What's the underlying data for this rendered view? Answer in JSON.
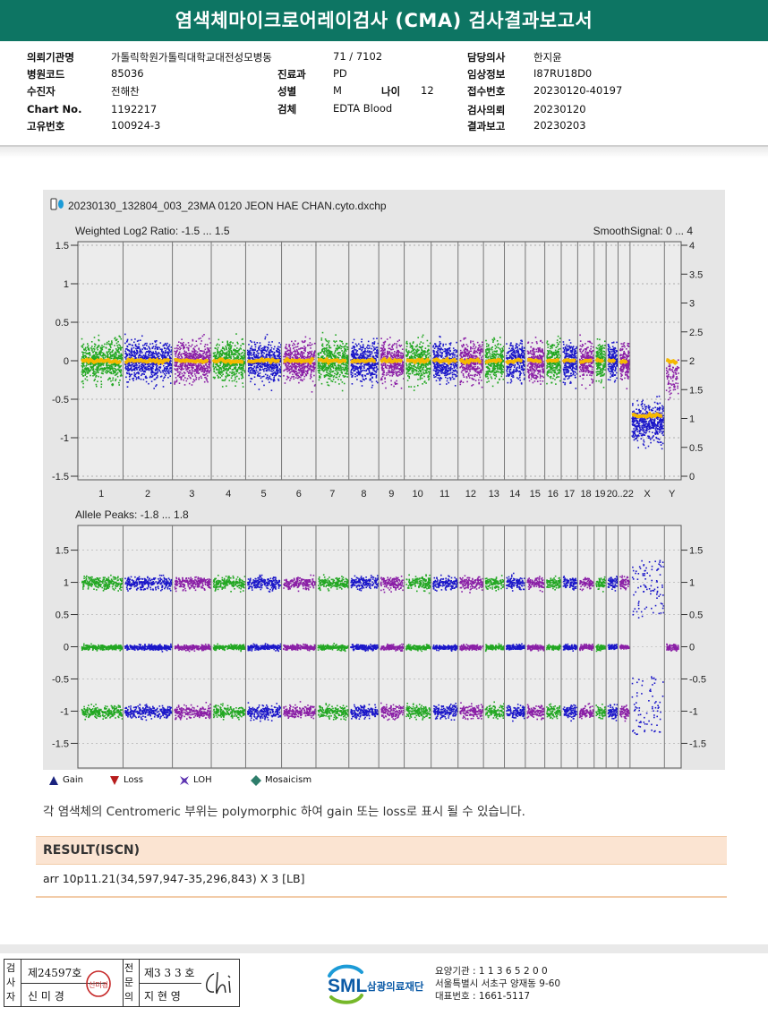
{
  "report": {
    "title": "염색체마이크로어레이검사 (CMA) 검사결과보고서"
  },
  "info": {
    "institution_label": "의뢰기관명",
    "institution_value": "가톨릭학원가톨릭대학교대전성모병동",
    "ward_value": "71 / 7102",
    "doctor_label": "담당의사",
    "doctor_value": "한지윤",
    "hospital_code_label": "병원코드",
    "hospital_code_value": "85036",
    "department_label": "진료과",
    "department_value": "PD",
    "clinical_label": "임상정보",
    "clinical_value": "I87RU18D0",
    "patient_label": "수진자",
    "patient_value": "전해찬",
    "sex_label": "성별",
    "sex_value": "M",
    "age_label": "나이",
    "age_value": "12",
    "receipt_label": "접수번호",
    "receipt_value": "20230120-40197",
    "chart_no_label": "Chart No.",
    "chart_no_value": "1192217",
    "specimen_label": "검체",
    "specimen_value": "EDTA Blood",
    "request_label": "검사의뢰",
    "request_value": "20230120",
    "unique_label": "고유번호",
    "unique_value": "100924-3",
    "report_label": "결과보고",
    "report_value": "20230203"
  },
  "chart_data": {
    "type": "scatter",
    "file_name": "20230130_132804_003_23MA 0120 JEON HAE CHAN.cyto.dxchp",
    "chromosomes": [
      "1",
      "2",
      "3",
      "4",
      "5",
      "6",
      "7",
      "8",
      "9",
      "10",
      "11",
      "12",
      "13",
      "14",
      "15",
      "16",
      "17",
      "18",
      "19",
      "20",
      "...22",
      "X",
      "Y"
    ],
    "top_panel": {
      "left_label": "Weighted Log2 Ratio: -1.5 ... 1.5",
      "right_label": "SmoothSignal: 0 ... 4",
      "left_ticks": [
        "1.5",
        "1",
        "0.5",
        "0",
        "-0.5",
        "-1",
        "-1.5"
      ],
      "right_ticks": [
        "4",
        "3.5",
        "3",
        "2.5",
        "2",
        "1.5",
        "1",
        "0.5",
        "0"
      ],
      "ylim": [
        -1.5,
        1.5
      ],
      "y2lim": [
        0,
        4
      ]
    },
    "bottom_panel": {
      "left_label": "Allele Peaks: -1.8 ... 1.8",
      "left_ticks": [
        "1.5",
        "1",
        "0.5",
        "0",
        "-0.5",
        "-1",
        "-1.5"
      ],
      "right_ticks": [
        "1.5",
        "1",
        "0.5",
        "0",
        "-0.5",
        "-1",
        "-1.5"
      ],
      "ylim": [
        -1.8,
        1.8
      ]
    },
    "colors": {
      "green": "#22a722",
      "blue": "#1b17c9",
      "purple": "#8a1fa6",
      "smooth": "#f5b800"
    }
  },
  "legend": {
    "gain": "Gain",
    "loss": "Loss",
    "loh": "LOH",
    "mosaicism": "Mosaicism",
    "gain_color": "#1a237e",
    "loss_color": "#b71c1c",
    "loh_color": "#5e35b1",
    "mosaic_color": "#2e7d6b"
  },
  "note": "각 염색체의 Centromeric 부위는 polymorphic 하여 gain 또는 loss로 표시 될 수 있습니다.",
  "result": {
    "heading": "RESULT(ISCN)",
    "text": "arr 10p11.21(34,597,947-35,296,843) X 3 [LB]"
  },
  "footer": {
    "inspector_label": "검사자",
    "inspector_no": "제24597호",
    "inspector_name": "신 미 경",
    "seal_text": "신미경",
    "specialist_label": "전문의",
    "specialist_no": "제3 3 3 호",
    "specialist_name": "지 현 영",
    "logo_text": "SML",
    "org_name": "삼광의료재단",
    "lab_code": "요양기관 : 1 1 3 6 5 2 0 0",
    "address": "서울특별시 서초구 양재동 9-60",
    "phone": "대표번호 : 1661-5117"
  }
}
